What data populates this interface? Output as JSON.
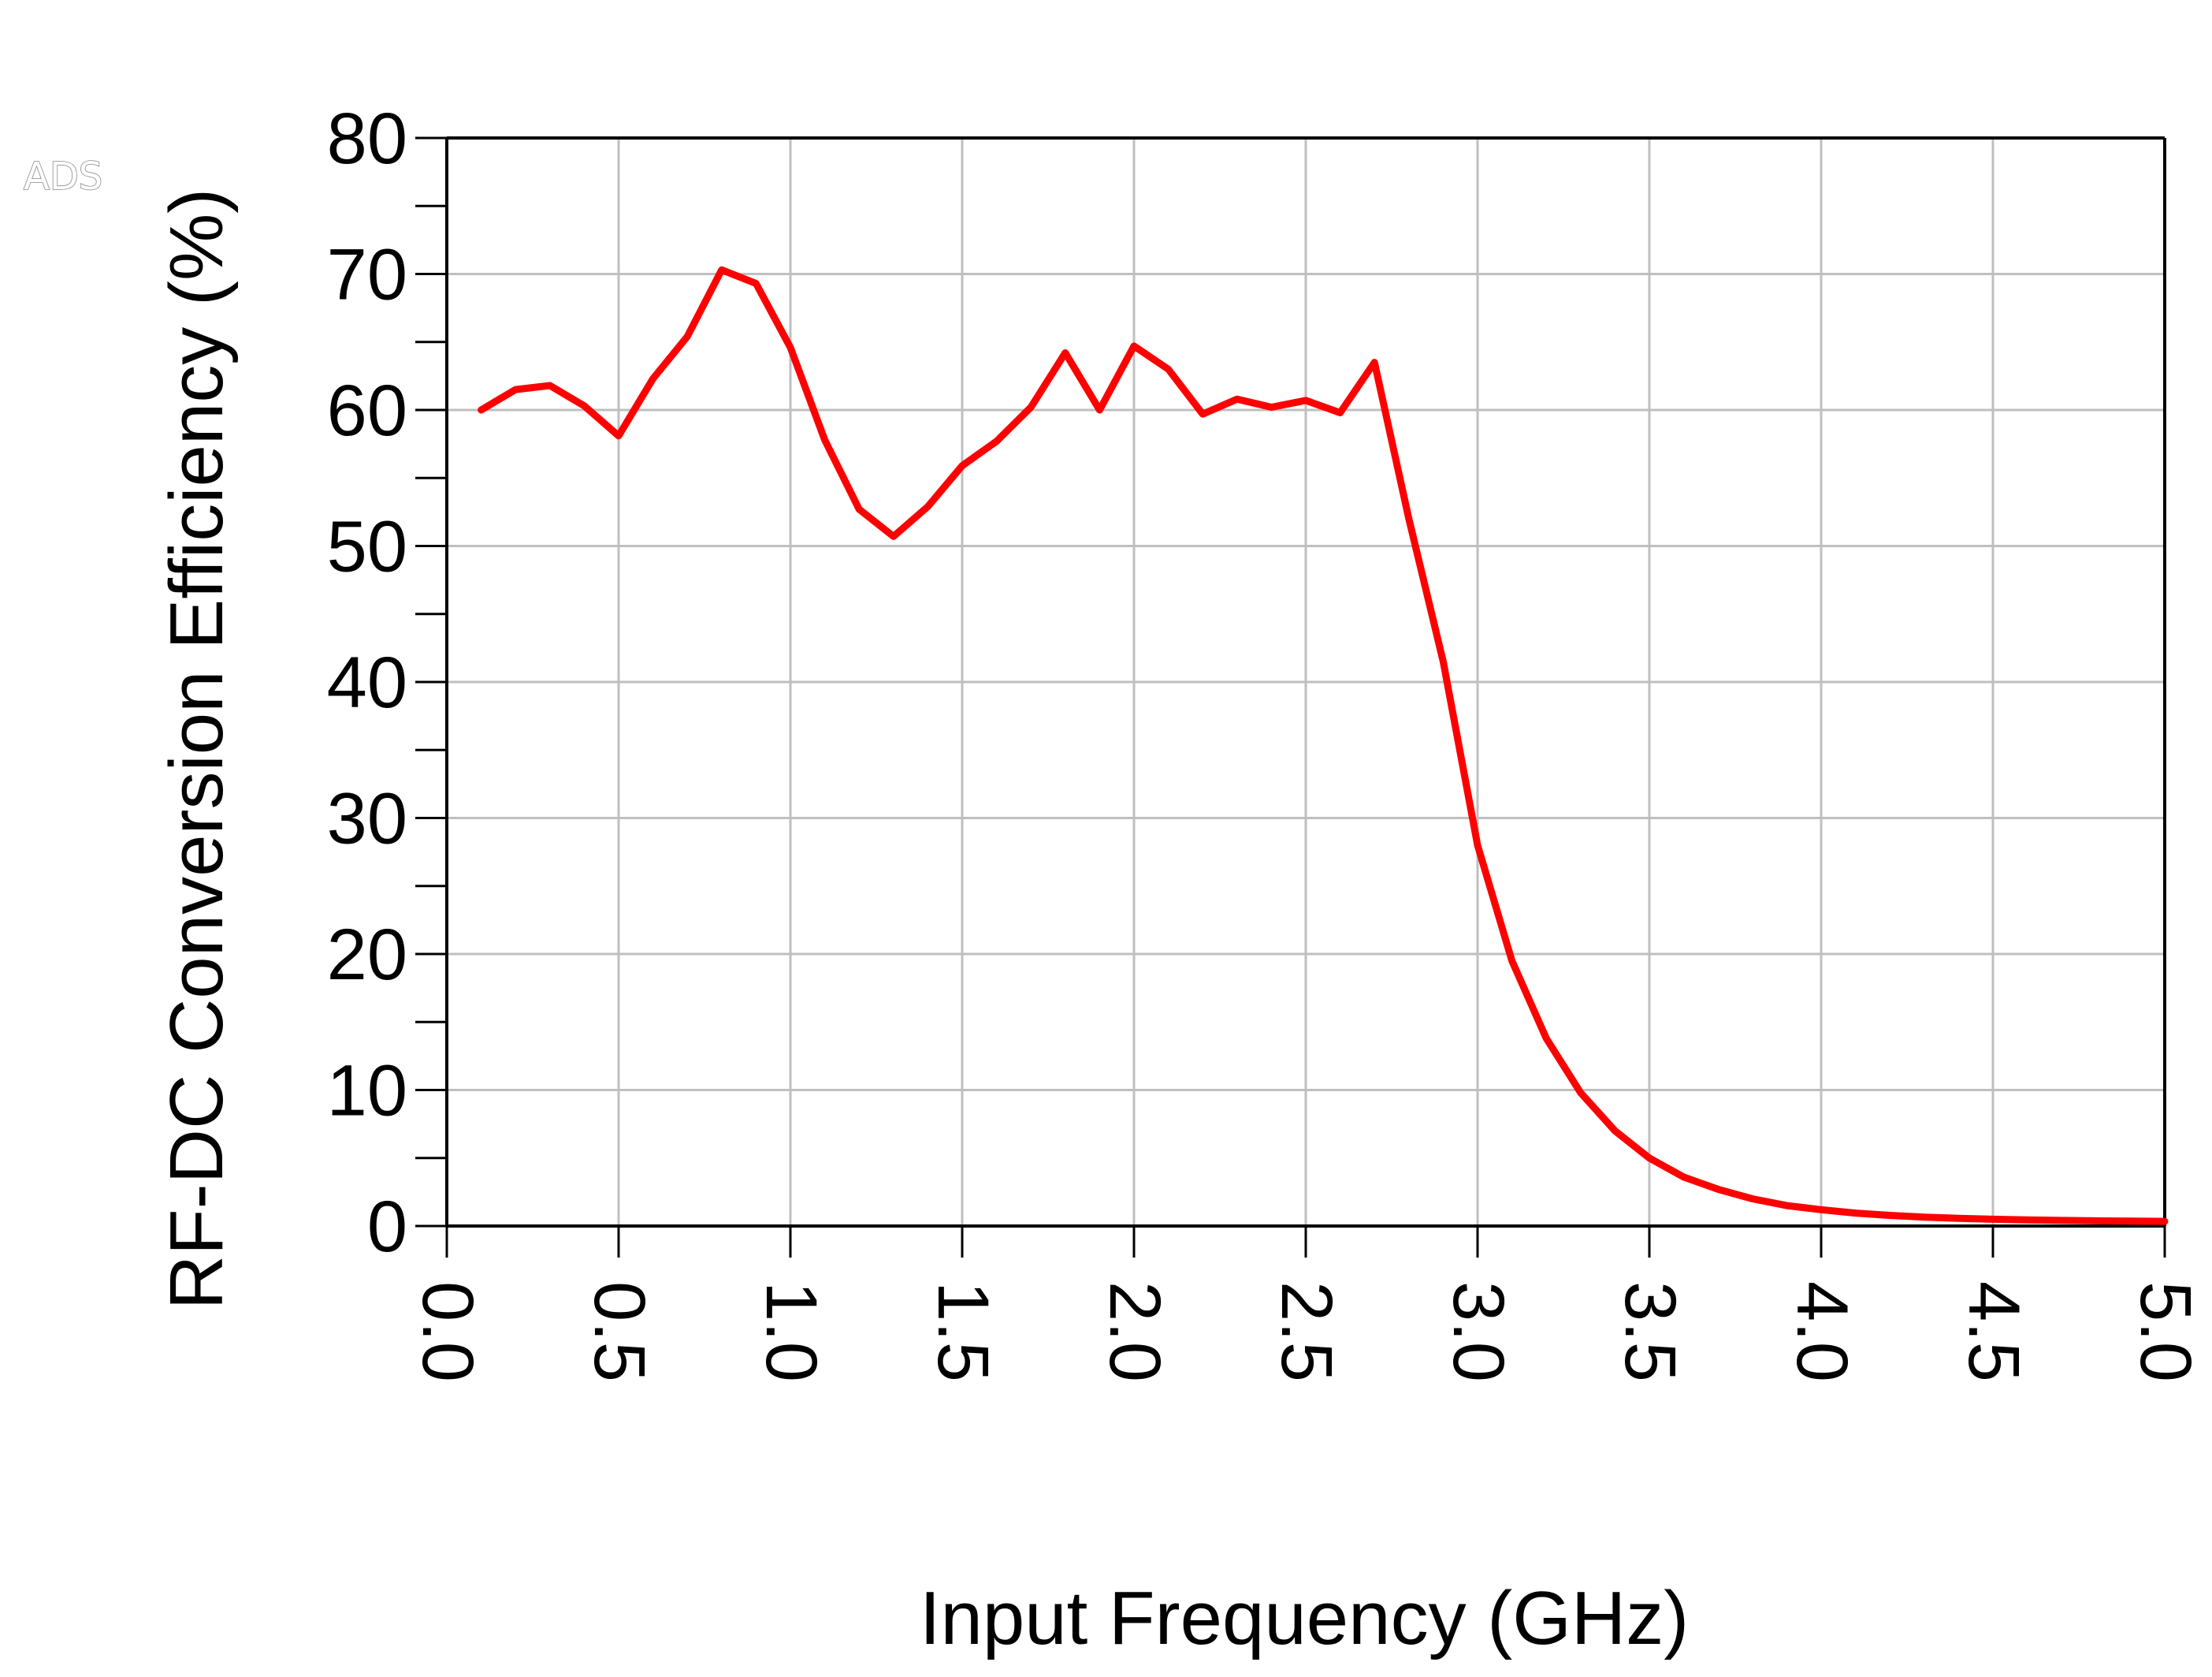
{
  "watermark": "ADS",
  "chart_data": {
    "type": "line",
    "xlabel": "Input Frequency (GHz)",
    "ylabel": "RF-DC Conversion Efficiency (%)",
    "xlim": [
      0.0,
      5.0
    ],
    "ylim": [
      0,
      80
    ],
    "x_ticks": [
      "0.0",
      "0.5",
      "1.0",
      "1.5",
      "2.0",
      "2.5",
      "3.0",
      "3.5",
      "4.0",
      "4.5",
      "5.0"
    ],
    "y_ticks": [
      "0",
      "10",
      "20",
      "30",
      "40",
      "50",
      "60",
      "70",
      "80"
    ],
    "grid": true,
    "colors": {
      "line": "#ff0000",
      "grid": "#bfbfbf",
      "axis": "#000000"
    },
    "series": [
      {
        "x": [
          0.1,
          0.2,
          0.3,
          0.4,
          0.5,
          0.6,
          0.7,
          0.8,
          0.9,
          1.0,
          1.1,
          1.2,
          1.3,
          1.4,
          1.5,
          1.6,
          1.7,
          1.8,
          1.9,
          2.0,
          2.1,
          2.2,
          2.3,
          2.4,
          2.5,
          2.6,
          2.7,
          2.8,
          2.9,
          3.0,
          3.1,
          3.2,
          3.3,
          3.4,
          3.5,
          3.6,
          3.7,
          3.8,
          3.9,
          4.0,
          4.1,
          4.2,
          4.3,
          4.4,
          4.5,
          4.6,
          4.7,
          4.8,
          4.9,
          5.0
        ],
        "values": [
          60.0,
          61.5,
          61.8,
          60.3,
          58.1,
          62.3,
          65.4,
          70.3,
          69.3,
          64.6,
          57.8,
          52.7,
          50.7,
          52.9,
          55.9,
          57.7,
          60.2,
          64.2,
          60.0,
          64.7,
          63.0,
          59.7,
          60.8,
          60.2,
          60.7,
          59.8,
          63.5,
          52.0,
          41.5,
          28.0,
          19.5,
          13.8,
          9.8,
          7.0,
          5.0,
          3.6,
          2.7,
          2.0,
          1.5,
          1.2,
          0.95,
          0.78,
          0.65,
          0.56,
          0.5,
          0.45,
          0.41,
          0.38,
          0.36,
          0.34
        ]
      }
    ]
  }
}
